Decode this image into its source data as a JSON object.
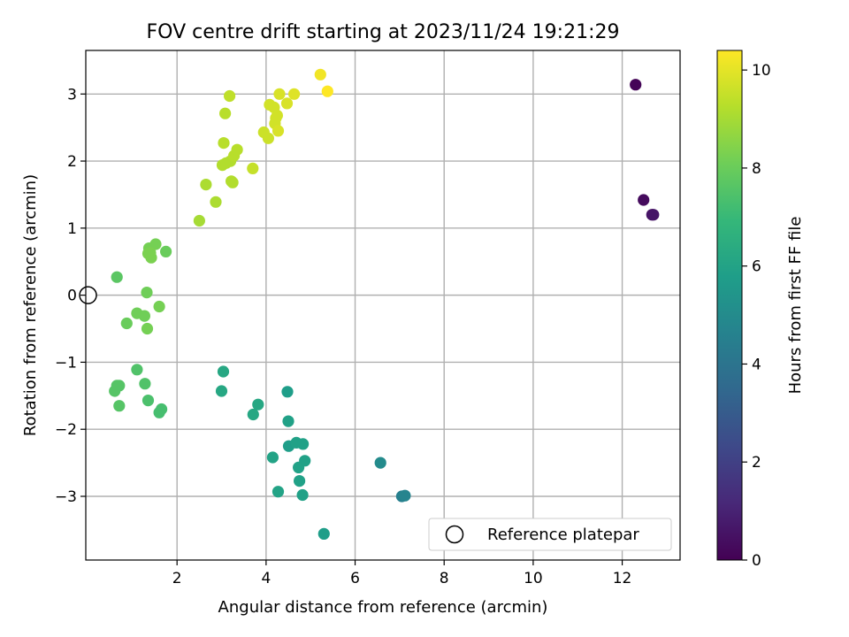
{
  "chart_data": {
    "type": "scatter",
    "title": "FOV centre drift starting at 2023/11/24 19:21:29",
    "xlabel": "Angular distance from reference (arcmin)",
    "ylabel": "Rotation from reference (arcmin)",
    "xlim": [
      -0.05,
      13.3
    ],
    "ylim": [
      -3.95,
      3.65
    ],
    "xticks": [
      2,
      4,
      6,
      8,
      10,
      12
    ],
    "xtick_labels": [
      "2",
      "4",
      "6",
      "8",
      "10",
      "12"
    ],
    "yticks": [
      -3,
      -2,
      -1,
      0,
      1,
      2,
      3
    ],
    "ytick_labels": [
      "−3",
      "−2",
      "−1",
      "0",
      "1",
      "2",
      "3"
    ],
    "grid": true,
    "colorbar": {
      "label": "Hours from first FF file",
      "colormap": "viridis",
      "range": [
        0,
        10.4
      ],
      "ticks": [
        0,
        2,
        4,
        6,
        8,
        10
      ],
      "tick_labels": [
        "0",
        "2",
        "4",
        "6",
        "8",
        "10"
      ]
    },
    "legend": {
      "placement": "lower-right",
      "entries": [
        {
          "label": "Reference platepar",
          "marker": "open-circle"
        }
      ]
    },
    "reference_point": {
      "x": 0,
      "y": 0
    },
    "points": [
      {
        "x": 12.3,
        "y": 3.14,
        "c": 0.1
      },
      {
        "x": 12.48,
        "y": 1.42,
        "c": 0.3
      },
      {
        "x": 12.67,
        "y": 1.2,
        "c": 0.5
      },
      {
        "x": 12.7,
        "y": 1.2,
        "c": 0.6
      },
      {
        "x": 7.05,
        "y": -3.0,
        "c": 4.5
      },
      {
        "x": 7.12,
        "y": -2.99,
        "c": 4.7
      },
      {
        "x": 6.57,
        "y": -2.5,
        "c": 5.0
      },
      {
        "x": 5.3,
        "y": -3.56,
        "c": 5.8
      },
      {
        "x": 4.82,
        "y": -2.98,
        "c": 5.9
      },
      {
        "x": 4.75,
        "y": -2.77,
        "c": 5.9
      },
      {
        "x": 4.73,
        "y": -2.57,
        "c": 5.95
      },
      {
        "x": 4.87,
        "y": -2.47,
        "c": 5.9
      },
      {
        "x": 4.51,
        "y": -2.25,
        "c": 5.8
      },
      {
        "x": 4.68,
        "y": -2.2,
        "c": 5.9
      },
      {
        "x": 4.83,
        "y": -2.22,
        "c": 5.9
      },
      {
        "x": 4.5,
        "y": -1.88,
        "c": 5.9
      },
      {
        "x": 4.48,
        "y": -1.44,
        "c": 5.8
      },
      {
        "x": 4.15,
        "y": -2.42,
        "c": 6.0
      },
      {
        "x": 4.27,
        "y": -2.93,
        "c": 6.0
      },
      {
        "x": 3.82,
        "y": -1.63,
        "c": 6.2
      },
      {
        "x": 3.71,
        "y": -1.78,
        "c": 6.2
      },
      {
        "x": 3.04,
        "y": -1.14,
        "c": 6.2
      },
      {
        "x": 3.0,
        "y": -1.43,
        "c": 6.2
      },
      {
        "x": 1.65,
        "y": -1.7,
        "c": 7.3
      },
      {
        "x": 1.6,
        "y": -1.75,
        "c": 7.3
      },
      {
        "x": 1.35,
        "y": -1.57,
        "c": 7.4
      },
      {
        "x": 1.28,
        "y": -1.32,
        "c": 7.5
      },
      {
        "x": 1.1,
        "y": -1.11,
        "c": 7.5
      },
      {
        "x": 0.7,
        "y": -1.35,
        "c": 7.6
      },
      {
        "x": 0.65,
        "y": -1.35,
        "c": 7.6
      },
      {
        "x": 0.6,
        "y": -1.43,
        "c": 7.6
      },
      {
        "x": 0.7,
        "y": -1.65,
        "c": 7.6
      },
      {
        "x": 0.65,
        "y": 0.27,
        "c": 7.7
      },
      {
        "x": 0.87,
        "y": -0.42,
        "c": 8.0
      },
      {
        "x": 1.1,
        "y": -0.27,
        "c": 8.1
      },
      {
        "x": 1.27,
        "y": -0.31,
        "c": 8.1
      },
      {
        "x": 1.33,
        "y": -0.5,
        "c": 8.2
      },
      {
        "x": 1.32,
        "y": 0.04,
        "c": 8.1
      },
      {
        "x": 1.6,
        "y": -0.17,
        "c": 8.2
      },
      {
        "x": 1.75,
        "y": 0.65,
        "c": 8.0
      },
      {
        "x": 1.37,
        "y": 0.7,
        "c": 8.2
      },
      {
        "x": 1.52,
        "y": 0.76,
        "c": 8.2
      },
      {
        "x": 1.4,
        "y": 0.63,
        "c": 8.3
      },
      {
        "x": 1.35,
        "y": 0.62,
        "c": 8.3
      },
      {
        "x": 1.42,
        "y": 0.56,
        "c": 8.3
      },
      {
        "x": 2.5,
        "y": 1.11,
        "c": 9.0
      },
      {
        "x": 2.65,
        "y": 1.65,
        "c": 9.1
      },
      {
        "x": 2.87,
        "y": 1.39,
        "c": 9.1
      },
      {
        "x": 3.22,
        "y": 1.7,
        "c": 9.2
      },
      {
        "x": 3.25,
        "y": 1.68,
        "c": 9.2
      },
      {
        "x": 3.02,
        "y": 1.94,
        "c": 9.2
      },
      {
        "x": 3.1,
        "y": 1.97,
        "c": 9.2
      },
      {
        "x": 3.2,
        "y": 2.0,
        "c": 9.2
      },
      {
        "x": 3.28,
        "y": 2.08,
        "c": 9.3
      },
      {
        "x": 3.35,
        "y": 2.17,
        "c": 9.3
      },
      {
        "x": 3.05,
        "y": 2.27,
        "c": 9.3
      },
      {
        "x": 3.08,
        "y": 2.71,
        "c": 9.3
      },
      {
        "x": 3.18,
        "y": 2.97,
        "c": 9.4
      },
      {
        "x": 3.7,
        "y": 1.89,
        "c": 9.5
      },
      {
        "x": 3.95,
        "y": 2.43,
        "c": 9.6
      },
      {
        "x": 4.05,
        "y": 2.34,
        "c": 9.6
      },
      {
        "x": 4.2,
        "y": 2.56,
        "c": 9.7
      },
      {
        "x": 4.22,
        "y": 2.64,
        "c": 9.7
      },
      {
        "x": 4.25,
        "y": 2.68,
        "c": 9.7
      },
      {
        "x": 4.08,
        "y": 2.84,
        "c": 9.7
      },
      {
        "x": 4.18,
        "y": 2.8,
        "c": 9.7
      },
      {
        "x": 4.27,
        "y": 2.45,
        "c": 9.8
      },
      {
        "x": 4.3,
        "y": 3.0,
        "c": 9.8
      },
      {
        "x": 4.47,
        "y": 2.86,
        "c": 9.8
      },
      {
        "x": 4.63,
        "y": 3.0,
        "c": 9.9
      },
      {
        "x": 5.22,
        "y": 3.29,
        "c": 10.2
      },
      {
        "x": 5.38,
        "y": 3.04,
        "c": 10.4
      }
    ]
  }
}
